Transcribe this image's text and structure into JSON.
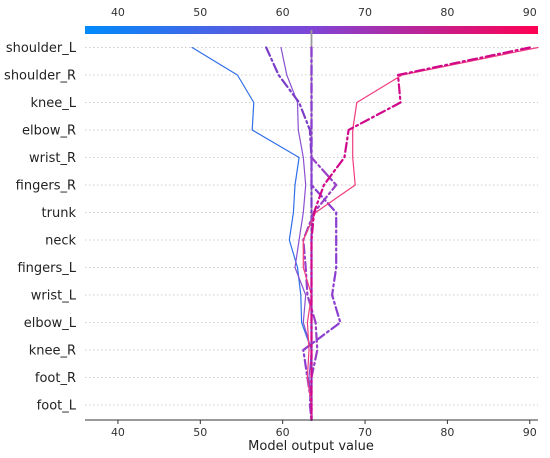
{
  "chart_data": {
    "type": "decision_plot",
    "xlabel": "Model output value",
    "xlim": [
      36,
      91
    ],
    "xticks": [
      40,
      50,
      60,
      70,
      80,
      90
    ],
    "base_value": 63.5,
    "features": [
      "shoulder_L",
      "shoulder_R",
      "knee_L",
      "elbow_R",
      "wrist_R",
      "fingers_R",
      "trunk",
      "neck",
      "fingers_L",
      "wrist_L",
      "elbow_L",
      "knee_R",
      "foot_R",
      "foot_L"
    ],
    "colormap": {
      "min": 36,
      "max": 91,
      "low_color": "#008bfb",
      "mid_color": "#7e45d6",
      "high_color": "#ff0052"
    },
    "gridlines": true,
    "series": [
      {
        "style": "solid",
        "color": "#2f6fe8",
        "values": [
          49.0,
          54.5,
          56.5,
          56.3,
          62.0,
          61.5,
          61.3,
          60.8,
          61.8,
          62.2,
          62.3,
          63.5,
          63.5,
          63.5,
          63.5
        ]
      },
      {
        "style": "solid",
        "color": "#8b50d0",
        "values": [
          59.8,
          60.5,
          61.8,
          61.9,
          62.5,
          62.8,
          62.5,
          62.0,
          61.5,
          62.8,
          62.5,
          63.5,
          63.2,
          63.5,
          63.5
        ]
      },
      {
        "style": "dashdot",
        "color": "#7a3dc8",
        "values": [
          58.0,
          59.5,
          62.0,
          63.3,
          63.5,
          63.5,
          63.5,
          63.5,
          63.5,
          63.5,
          63.5,
          63.5,
          63.5,
          63.5,
          63.5
        ]
      },
      {
        "style": "dashdot",
        "color": "#9a40c6",
        "values": [
          63.5,
          63.5,
          63.5,
          63.5,
          63.5,
          66.5,
          63.8,
          62.5,
          62.8,
          63.0,
          64.0,
          64.2,
          63.5,
          63.3,
          63.5
        ]
      },
      {
        "style": "dashdot",
        "color": "#8c3ed0",
        "values": [
          63.5,
          63.5,
          63.5,
          63.5,
          63.5,
          63.5,
          66.5,
          66.5,
          66.5,
          66.0,
          67.0,
          62.5,
          63.0,
          63.5,
          63.5
        ]
      },
      {
        "style": "solid",
        "color": "#f03b7e",
        "values": [
          91.0,
          74.5,
          69.0,
          68.5,
          68.5,
          68.8,
          64.0,
          62.5,
          62.5,
          63.5,
          63.0,
          63.2,
          63.0,
          63.5,
          63.5
        ]
      },
      {
        "style": "dashdot",
        "color": "#d0088a",
        "values": [
          90.0,
          74.0,
          74.3,
          68.0,
          67.5,
          65.0,
          63.8,
          63.5,
          63.5,
          63.5,
          63.5,
          63.5,
          63.5,
          63.5,
          63.5
        ]
      }
    ]
  }
}
